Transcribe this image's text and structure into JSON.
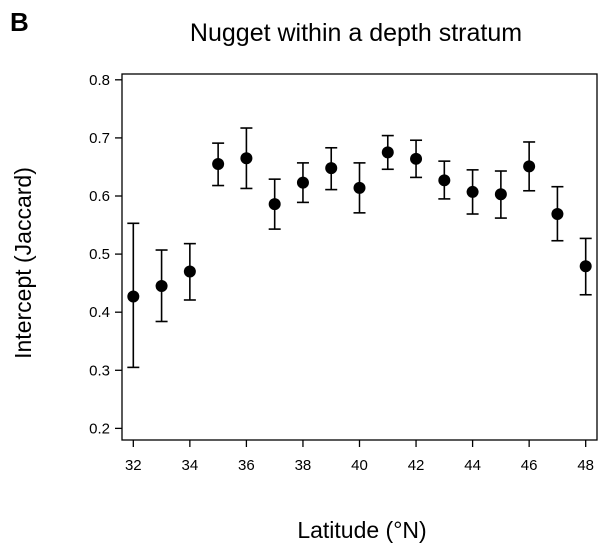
{
  "panel_label": "B",
  "chart_data": {
    "type": "scatter",
    "title": "Nugget within a depth stratum",
    "xlabel": "Latitude (°N)",
    "ylabel": "Intercept (Jaccard)",
    "xlim": [
      31.6,
      48.4
    ],
    "ylim": [
      0.18,
      0.81
    ],
    "xticks": [
      32,
      34,
      36,
      38,
      40,
      42,
      44,
      46,
      48
    ],
    "yticks": [
      0.2,
      0.3,
      0.4,
      0.5,
      0.6,
      0.7,
      0.8
    ],
    "xtick_labels": [
      "32",
      "34",
      "36",
      "38",
      "40",
      "42",
      "44",
      "46",
      "48"
    ],
    "ytick_labels": [
      "0.2",
      "0.3",
      "0.4",
      "0.5",
      "0.6",
      "0.7",
      "0.8"
    ],
    "grid": false,
    "error_bars": true,
    "x": [
      32,
      33,
      34,
      35,
      36,
      37,
      38,
      39,
      40,
      41,
      42,
      43,
      44,
      45,
      46,
      47,
      48
    ],
    "y": [
      0.427,
      0.445,
      0.47,
      0.655,
      0.665,
      0.586,
      0.623,
      0.648,
      0.614,
      0.675,
      0.664,
      0.627,
      0.607,
      0.603,
      0.651,
      0.569,
      0.479
    ],
    "lower": [
      0.305,
      0.384,
      0.421,
      0.618,
      0.613,
      0.543,
      0.589,
      0.611,
      0.571,
      0.646,
      0.632,
      0.595,
      0.569,
      0.562,
      0.609,
      0.523,
      0.43
    ],
    "upper": [
      0.553,
      0.507,
      0.518,
      0.691,
      0.717,
      0.629,
      0.657,
      0.683,
      0.657,
      0.704,
      0.696,
      0.66,
      0.645,
      0.643,
      0.693,
      0.616,
      0.527
    ]
  }
}
